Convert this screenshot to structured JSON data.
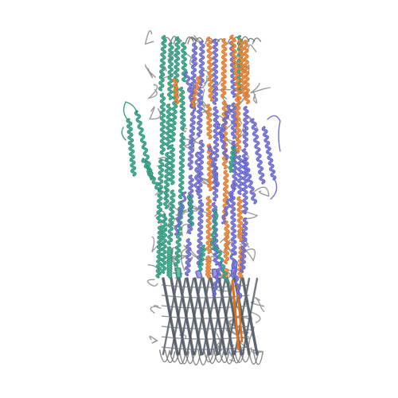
{
  "image": {
    "subject": "protein-structure-cartoon",
    "background_color": "#ffffff",
    "chain_colors": [
      "#1a8f73",
      "#5a5ac8",
      "#e0701a",
      "#6f6f6f"
    ],
    "beta_strand_color": "#5d6670",
    "coil_color": "#8a8a8a"
  }
}
